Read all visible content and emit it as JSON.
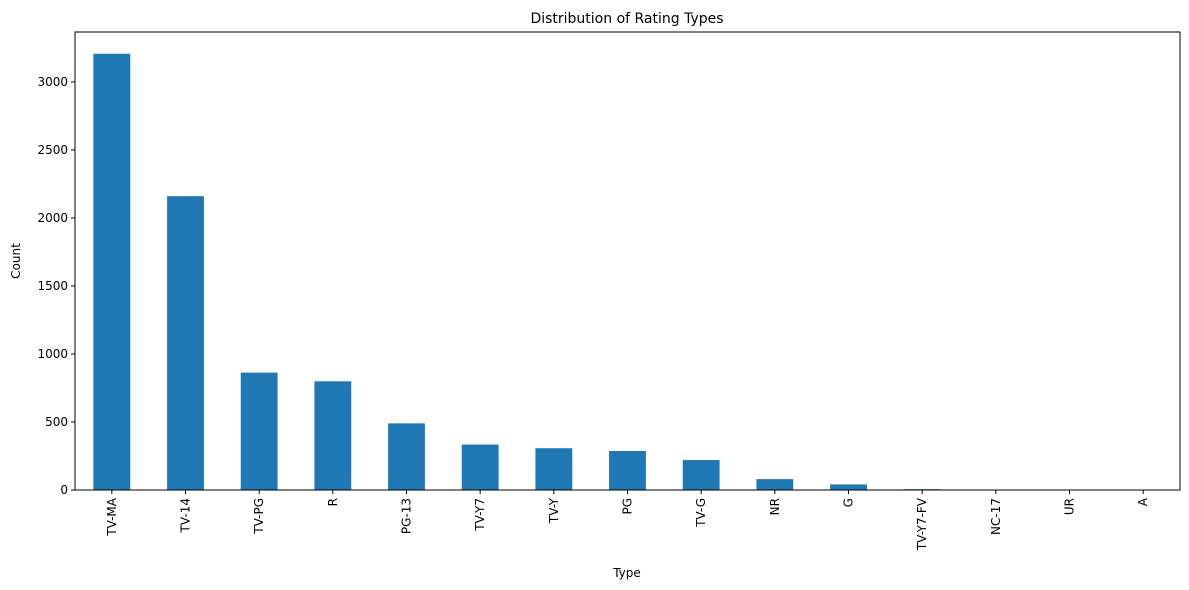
{
  "chart_data": {
    "type": "bar",
    "title": "Distribution of Rating Types",
    "xlabel": "Type",
    "ylabel": "Count",
    "categories": [
      "TV-MA",
      "TV-14",
      "TV-PG",
      "R",
      "PG-13",
      "TV-Y7",
      "TV-Y",
      "PG",
      "TV-G",
      "NR",
      "G",
      "TV-Y7-FV",
      "NC-17",
      "UR",
      "A"
    ],
    "values": [
      3207,
      2160,
      863,
      799,
      490,
      334,
      307,
      287,
      220,
      80,
      41,
      6,
      3,
      3,
      1
    ],
    "ylim": [
      0,
      3367
    ],
    "yticks": [
      0,
      500,
      1000,
      1500,
      2000,
      2500,
      3000
    ],
    "grid": false,
    "bar_color": "#1f77b4"
  }
}
